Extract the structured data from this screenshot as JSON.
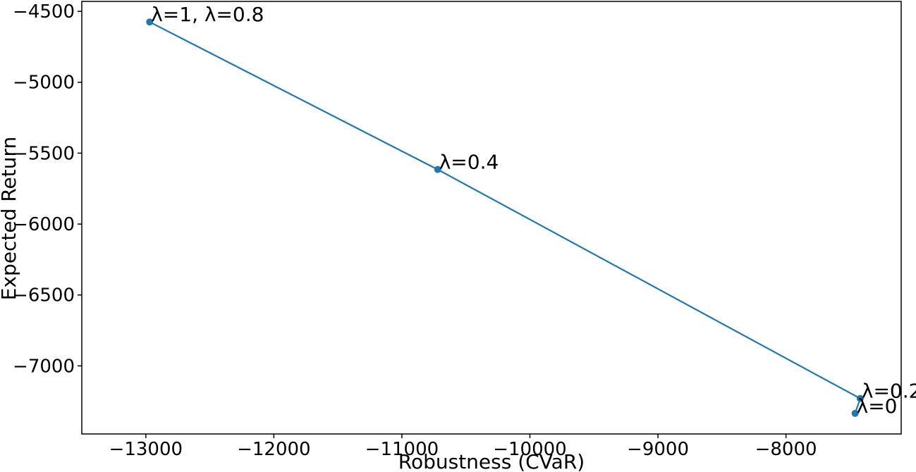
{
  "chart_data": {
    "type": "line",
    "xlabel": "Robustness (CVaR)",
    "ylabel": "Expected Return",
    "xlim": [
      -13500,
      -7100
    ],
    "ylim": [
      -7480,
      -4430
    ],
    "xticks": [
      -13000,
      -12000,
      -11000,
      -10000,
      -9000,
      -8000
    ],
    "yticks": [
      -4500,
      -5000,
      -5500,
      -6000,
      -6500,
      -7000
    ],
    "xtick_labels": [
      "−13000",
      "−12000",
      "−11000",
      "−10000",
      "−9000",
      "−8000"
    ],
    "ytick_labels": [
      "−4500",
      "−5000",
      "−5500",
      "−6000",
      "−6500",
      "−7000"
    ],
    "grid": false,
    "series": [
      {
        "x": [
          -12970,
          -10720,
          -7420,
          -7460
        ],
        "y": [
          -4575,
          -5615,
          -7230,
          -7335
        ],
        "color": "#1f77b4",
        "labels": [
          "λ=1, λ=0.8",
          "λ=0.4",
          "λ=0.2",
          "λ=0"
        ]
      }
    ]
  }
}
